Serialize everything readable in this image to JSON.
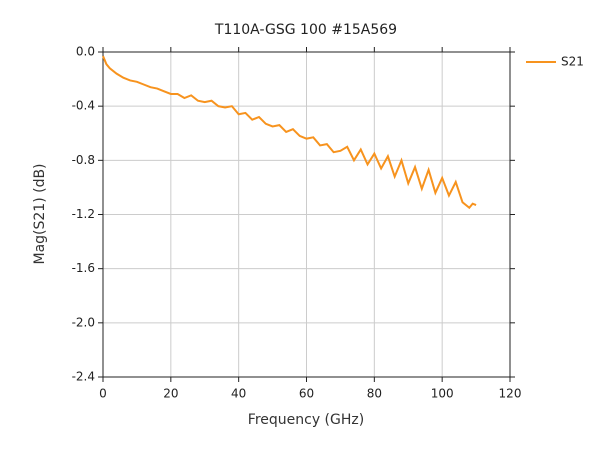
{
  "chart_data": {
    "type": "line",
    "title": "T110A-GSG 100 #15A569",
    "xlabel": "Frequency (GHz)",
    "ylabel": "Mag(S21) (dB)",
    "x": [
      0,
      1,
      2,
      4,
      6,
      8,
      10,
      12,
      14,
      16,
      18,
      20,
      22,
      24,
      26,
      28,
      30,
      32,
      34,
      36,
      38,
      40,
      42,
      44,
      46,
      48,
      50,
      52,
      54,
      56,
      58,
      60,
      62,
      64,
      66,
      68,
      70,
      72,
      74,
      76,
      78,
      80,
      82,
      84,
      86,
      88,
      90,
      92,
      94,
      96,
      98,
      100,
      102,
      104,
      106,
      108,
      109,
      110
    ],
    "series": [
      {
        "name": "S21",
        "color": "#f7931e",
        "values": [
          -0.03,
          -0.09,
          -0.12,
          -0.16,
          -0.19,
          -0.21,
          -0.22,
          -0.24,
          -0.26,
          -0.27,
          -0.29,
          -0.31,
          -0.31,
          -0.34,
          -0.32,
          -0.36,
          -0.37,
          -0.36,
          -0.4,
          -0.41,
          -0.4,
          -0.46,
          -0.45,
          -0.5,
          -0.48,
          -0.53,
          -0.55,
          -0.54,
          -0.59,
          -0.57,
          -0.62,
          -0.64,
          -0.63,
          -0.69,
          -0.68,
          -0.74,
          -0.73,
          -0.7,
          -0.8,
          -0.72,
          -0.83,
          -0.75,
          -0.86,
          -0.77,
          -0.92,
          -0.8,
          -0.97,
          -0.85,
          -1.01,
          -0.87,
          -1.04,
          -0.93,
          -1.06,
          -0.96,
          -1.11,
          -1.15,
          -1.12,
          -1.13
        ]
      }
    ],
    "xlim": [
      0,
      120
    ],
    "xticks": [
      0,
      20,
      40,
      60,
      80,
      100,
      120
    ],
    "ylim": [
      -2.4,
      0
    ],
    "yticks": [
      {
        "value": 0,
        "label": "0.0"
      },
      -0.4,
      -0.8,
      -1.2,
      -1.6,
      {
        "value": -2,
        "label": "-2.0"
      },
      -2.4
    ],
    "grid": true,
    "legend": "right"
  }
}
